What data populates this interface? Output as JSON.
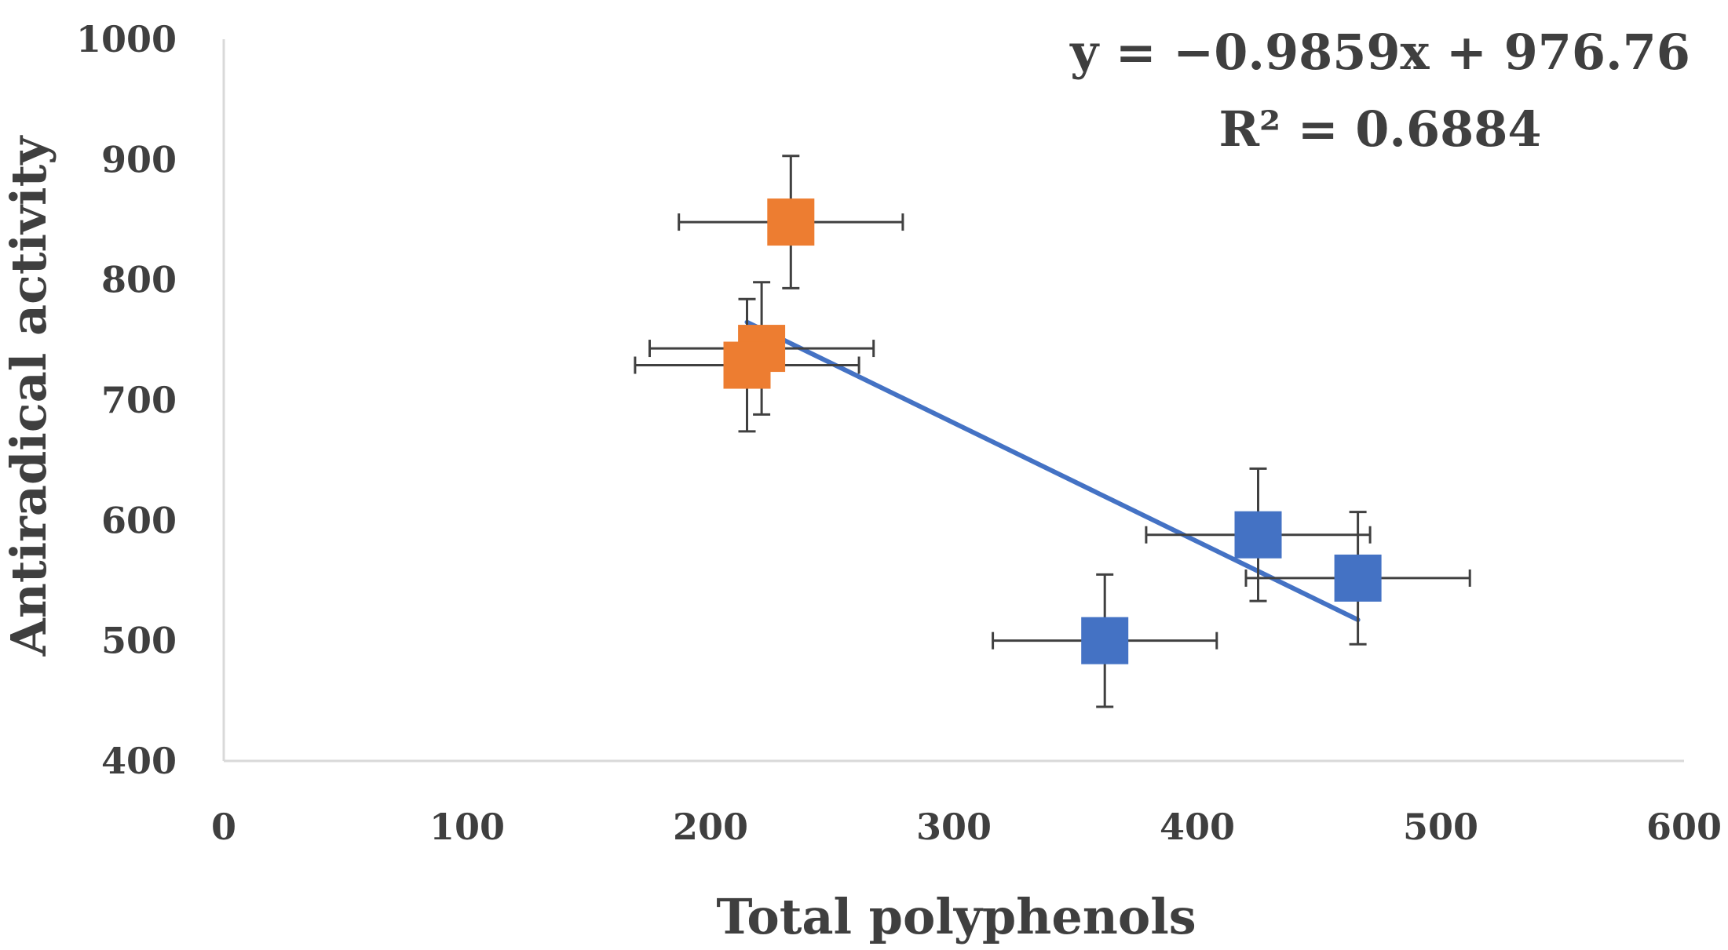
{
  "chart_data": {
    "type": "scatter",
    "title": "",
    "xlabel": "Total polyphenols",
    "ylabel": "Antiradical activity",
    "xlim": [
      0,
      600
    ],
    "ylim": [
      400,
      1000
    ],
    "x_ticks": [
      0,
      100,
      200,
      300,
      400,
      500,
      600
    ],
    "y_ticks": [
      400,
      500,
      600,
      700,
      800,
      900,
      1000
    ],
    "grid": false,
    "series": [
      {
        "name": "orange",
        "color": "#ED7D31",
        "points": [
          {
            "x": 233,
            "y": 848,
            "xerr": 46,
            "yerr": 55
          },
          {
            "x": 221,
            "y": 743,
            "xerr": 46,
            "yerr": 55
          },
          {
            "x": 215,
            "y": 729,
            "xerr": 46,
            "yerr": 55
          }
        ]
      },
      {
        "name": "blue",
        "color": "#4472C4",
        "points": [
          {
            "x": 362,
            "y": 500,
            "xerr": 46,
            "yerr": 55
          },
          {
            "x": 425,
            "y": 588,
            "xerr": 46,
            "yerr": 55
          },
          {
            "x": 466,
            "y": 552,
            "xerr": 46,
            "yerr": 55
          }
        ]
      }
    ],
    "trendline": {
      "color": "#4472C4",
      "slope": -0.9859,
      "intercept": 976.76,
      "x_range": [
        215,
        466
      ]
    },
    "equation": "y = −0.9859x + 976.76",
    "r_squared": "R² = 0.6884",
    "axis_color": "#d9d9d9",
    "errorbar_color": "#404040"
  }
}
